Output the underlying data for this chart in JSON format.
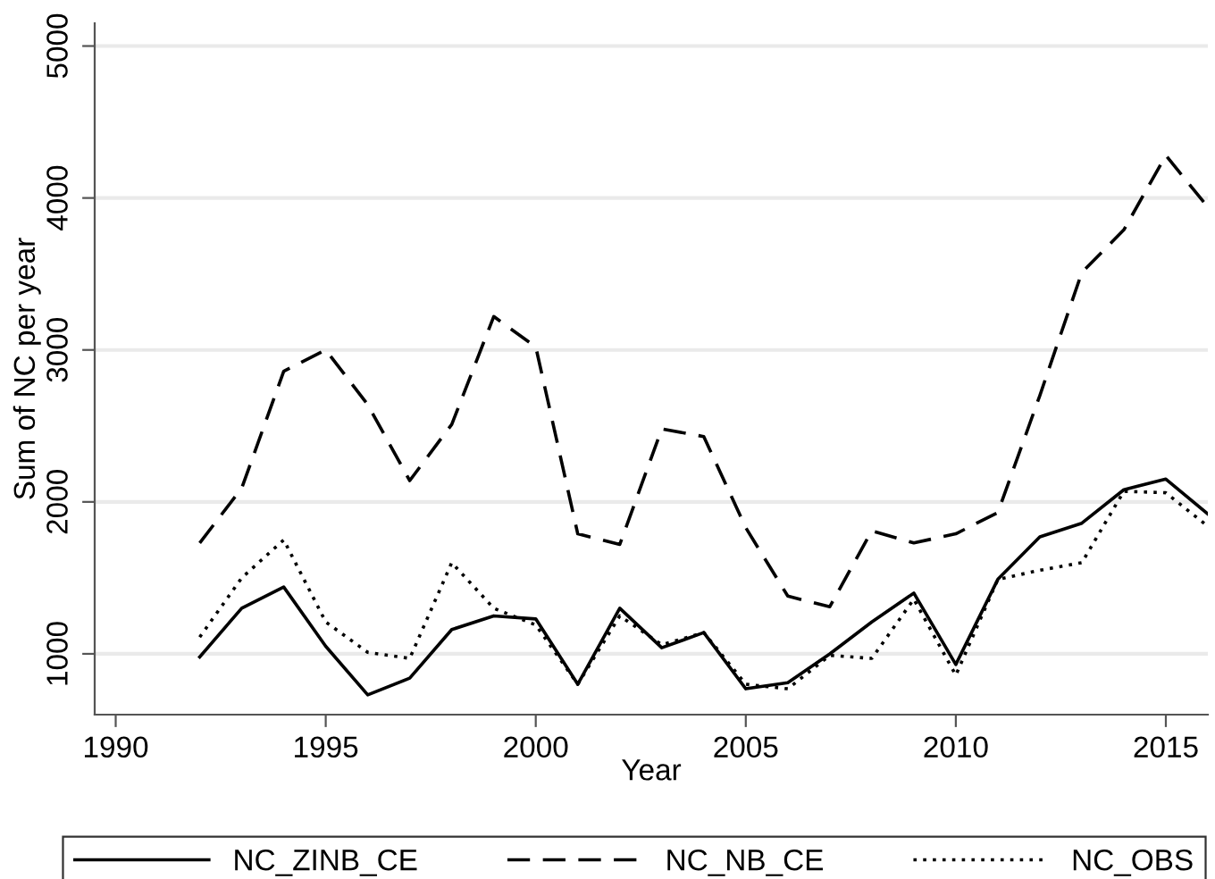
{
  "chart_data": {
    "type": "line",
    "xlabel": "Year",
    "ylabel": "Sum of NC per year",
    "x": [
      1992,
      1993,
      1994,
      1995,
      1996,
      1997,
      1998,
      1999,
      2000,
      2001,
      2002,
      2003,
      2004,
      2005,
      2006,
      2007,
      2008,
      2009,
      2010,
      2011,
      2012,
      2013,
      2014,
      2015,
      2016
    ],
    "series": [
      {
        "name": "NC_ZINB_CE",
        "color": "#000000",
        "line_style": "solid",
        "values": [
          980,
          1300,
          1440,
          1050,
          730,
          840,
          1160,
          1250,
          1230,
          800,
          1300,
          1040,
          1140,
          770,
          810,
          1000,
          1210,
          1400,
          930,
          1490,
          1770,
          1860,
          2080,
          2150,
          1920
        ]
      },
      {
        "name": "NC_NB_CE",
        "color": "#000000",
        "line_style": "dashed",
        "values": [
          1730,
          2090,
          2860,
          3000,
          2640,
          2140,
          2510,
          3220,
          3020,
          1790,
          1720,
          2480,
          2430,
          1830,
          1380,
          1310,
          1810,
          1730,
          1790,
          1930,
          2700,
          3510,
          3790,
          4280,
          3940
        ]
      },
      {
        "name": "NC_OBS",
        "color": "#000000",
        "line_style": "dotted",
        "values": [
          1110,
          1500,
          1750,
          1210,
          1010,
          970,
          1600,
          1300,
          1190,
          800,
          1250,
          1060,
          1140,
          800,
          770,
          990,
          970,
          1360,
          860,
          1490,
          1550,
          1600,
          2070,
          2060,
          1840
        ]
      }
    ],
    "xlim": [
      1989.5,
      2016
    ],
    "xticks": [
      1990,
      1995,
      2000,
      2005,
      2010,
      2015
    ],
    "ylim": [
      600,
      5150
    ],
    "yticks": [
      1000,
      2000,
      3000,
      4000,
      5000
    ],
    "grid": "y",
    "legend": "bottom",
    "marker": "none"
  }
}
